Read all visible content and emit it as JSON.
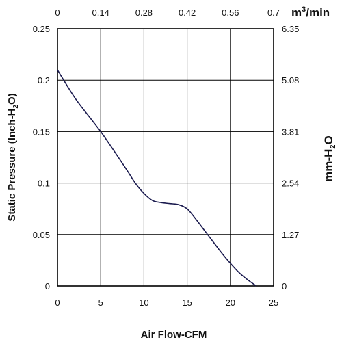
{
  "chart_data": {
    "type": "line",
    "title": "",
    "xlabel": "Air Flow-CFM",
    "ylabel": "Static Pressure (Inch-H",
    "ylabel_sub": "2",
    "ylabel_end": "O)",
    "xlim": [
      0,
      25
    ],
    "ylim": [
      0,
      0.25
    ],
    "x_ticks": [
      "0",
      "5",
      "10",
      "15",
      "20",
      "25"
    ],
    "y_ticks": [
      "0",
      "0.05",
      "0.1",
      "0.15",
      "0.2",
      "0.25"
    ],
    "x2label": "m",
    "x2label_sup": "3",
    "x2label_end": "/min",
    "x2_ticks": [
      "0",
      "0.14",
      "0.28",
      "0.42",
      "0.56",
      "0.7"
    ],
    "y2label": "mm-H",
    "y2label_sub": "2",
    "y2label_end": "O",
    "y2_ticks": [
      "0",
      "1.27",
      "2.54",
      "3.81",
      "5.08",
      "6.35"
    ],
    "grid": true,
    "line_color": "#1a1a4e",
    "series": [
      {
        "x": [
          0,
          2,
          4,
          5,
          6,
          8,
          9,
          10,
          11,
          12,
          13,
          14,
          15,
          16,
          17,
          18,
          19,
          20,
          21,
          22,
          23
        ],
        "y": [
          0.21,
          0.183,
          0.161,
          0.15,
          0.138,
          0.113,
          0.1,
          0.09,
          0.083,
          0.081,
          0.08,
          0.079,
          0.075,
          0.065,
          0.054,
          0.043,
          0.032,
          0.022,
          0.013,
          0.006,
          0.0
        ]
      }
    ]
  }
}
